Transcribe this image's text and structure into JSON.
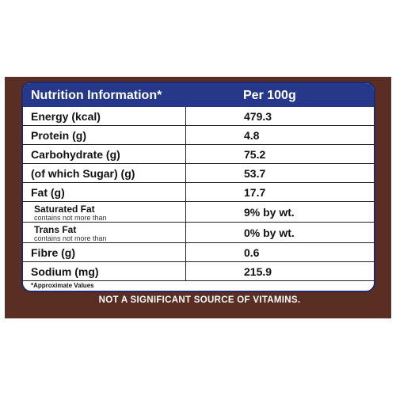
{
  "header": {
    "col1": "Nutrition Information*",
    "col2": "Per 100g"
  },
  "rows": [
    {
      "name": "Energy (kcal)",
      "value": "479.3"
    },
    {
      "name": "Protein (g)",
      "value": "4.8"
    },
    {
      "name": "Carbohydrate (g)",
      "value": "75.2"
    },
    {
      "name": "(of which Sugar) (g)",
      "value": "53.7"
    },
    {
      "name": "Fat (g)",
      "value": "17.7"
    },
    {
      "name": "Saturated Fat",
      "note": "contains not more than",
      "value": "9% by wt."
    },
    {
      "name": "Trans Fat",
      "note": "contains not more than",
      "value": "0% by wt."
    },
    {
      "name": "Fibre (g)",
      "value": "0.6"
    },
    {
      "name": "Sodium (mg)",
      "value": "215.9"
    }
  ],
  "footnote": "*Approximate Values",
  "disclaimer": "NOT A SIGNIFICANT SOURCE OF VITAMINS.",
  "colors": {
    "band": "#5a2e22",
    "header": "#26388a",
    "border": "#1f2a6e"
  }
}
